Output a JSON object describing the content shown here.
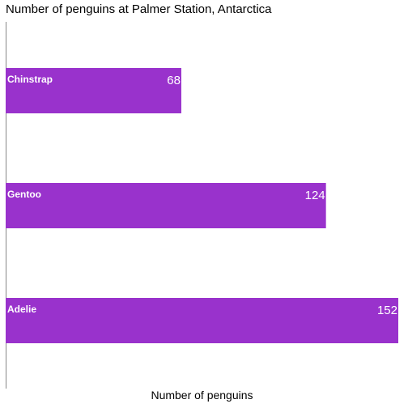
{
  "chart_data": {
    "type": "bar",
    "orientation": "horizontal",
    "title": "Number of penguins at Palmer Station, Antarctica",
    "xlabel": "Number of penguins",
    "ylabel": "",
    "categories": [
      "Chinstrap",
      "Gentoo",
      "Adelie"
    ],
    "values": [
      68,
      124,
      152
    ],
    "data_labels": [
      "68",
      "124",
      "152"
    ],
    "xlim": [
      0,
      152
    ],
    "grid": false,
    "legend": "none",
    "bar_color": "#9932cc",
    "category_label_color": "#ffffff",
    "value_label_color": "#ffffff"
  }
}
